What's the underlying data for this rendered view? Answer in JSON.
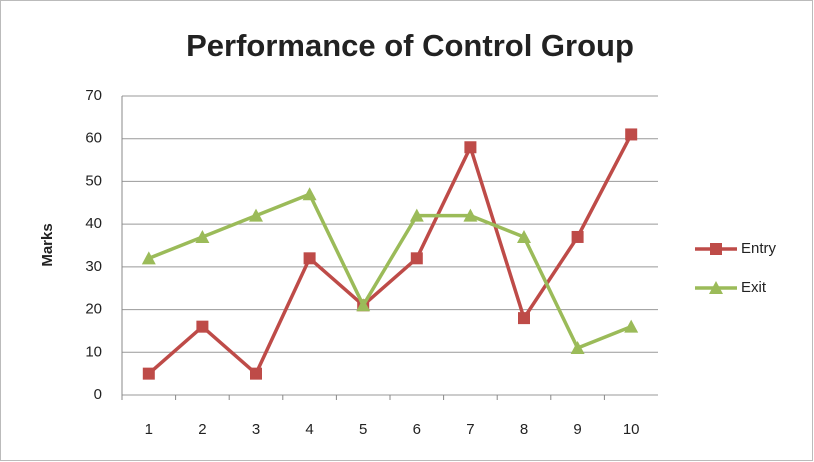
{
  "chart_data": {
    "type": "line",
    "title": "Performance of Control Group",
    "y_label": "Marks",
    "categories": [
      "1",
      "2",
      "3",
      "4",
      "5",
      "6",
      "7",
      "8",
      "9",
      "10"
    ],
    "series": [
      {
        "name": "Entry",
        "color": "#be4b48",
        "marker": "square",
        "values": [
          5,
          16,
          5,
          32,
          21,
          32,
          58,
          18,
          37,
          61
        ]
      },
      {
        "name": "Exit",
        "color": "#9bbb59",
        "marker": "triangle",
        "values": [
          32,
          37,
          42,
          47,
          21,
          42,
          42,
          37,
          11,
          16
        ]
      }
    ],
    "ylim": [
      0,
      70
    ],
    "yticks": [
      0,
      10,
      20,
      30,
      40,
      50,
      60,
      70
    ],
    "grid": true,
    "legend": "right"
  }
}
